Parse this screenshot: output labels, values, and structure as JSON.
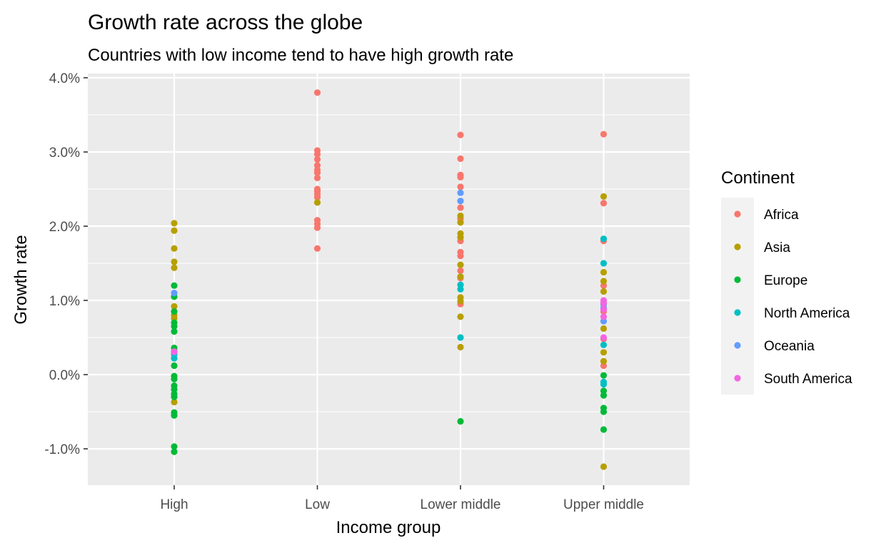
{
  "chart_data": {
    "type": "scatter",
    "title": "Growth rate across the globe",
    "subtitle": "Countries with low income tend to have high growth rate",
    "xlabel": "Income group",
    "ylabel": "Growth rate",
    "categories": [
      "High",
      "Low",
      "Lower middle",
      "Upper middle"
    ],
    "y_ticks": [
      -1.0,
      0.0,
      1.0,
      2.0,
      3.0,
      4.0
    ],
    "y_tick_labels": [
      "-1.0%",
      "0.0%",
      "1.0%",
      "2.0%",
      "3.0%",
      "4.0%"
    ],
    "ylim": [
      -1.5,
      4.1
    ],
    "grid": true,
    "legend": {
      "title": "Continent",
      "position": "right",
      "entries": [
        {
          "name": "Africa",
          "color": "#F8766D"
        },
        {
          "name": "Asia",
          "color": "#B79F00"
        },
        {
          "name": "Europe",
          "color": "#00BA38"
        },
        {
          "name": "North America",
          "color": "#00BFC4"
        },
        {
          "name": "Oceania",
          "color": "#619CFF"
        },
        {
          "name": "South America",
          "color": "#F564E3"
        }
      ]
    },
    "series": [
      {
        "name": "Africa",
        "points": [
          [
            "Low",
            3.8
          ],
          [
            "Low",
            3.02
          ],
          [
            "Low",
            2.97
          ],
          [
            "Low",
            2.9
          ],
          [
            "Low",
            2.82
          ],
          [
            "Low",
            2.76
          ],
          [
            "Low",
            2.72
          ],
          [
            "Low",
            2.65
          ],
          [
            "Low",
            2.5
          ],
          [
            "Low",
            2.47
          ],
          [
            "Low",
            2.43
          ],
          [
            "Low",
            2.39
          ],
          [
            "Low",
            2.08
          ],
          [
            "Low",
            2.03
          ],
          [
            "Low",
            1.98
          ],
          [
            "Low",
            1.7
          ],
          [
            "Lower middle",
            3.23
          ],
          [
            "Lower middle",
            2.91
          ],
          [
            "Lower middle",
            2.69
          ],
          [
            "Lower middle",
            2.66
          ],
          [
            "Lower middle",
            2.53
          ],
          [
            "Lower middle",
            2.25
          ],
          [
            "Lower middle",
            2.1
          ],
          [
            "Lower middle",
            1.8
          ],
          [
            "Lower middle",
            1.65
          ],
          [
            "Lower middle",
            1.6
          ],
          [
            "Lower middle",
            1.4
          ],
          [
            "Lower middle",
            1.3
          ],
          [
            "Lower middle",
            0.95
          ],
          [
            "Upper middle",
            3.24
          ],
          [
            "Upper middle",
            2.31
          ],
          [
            "Upper middle",
            1.8
          ],
          [
            "Upper middle",
            1.2
          ],
          [
            "Upper middle",
            0.85
          ],
          [
            "Upper middle",
            0.48
          ],
          [
            "Upper middle",
            0.12
          ]
        ]
      },
      {
        "name": "Asia",
        "points": [
          [
            "High",
            2.04
          ],
          [
            "High",
            1.94
          ],
          [
            "High",
            1.7
          ],
          [
            "High",
            1.52
          ],
          [
            "High",
            1.44
          ],
          [
            "High",
            0.92
          ],
          [
            "High",
            0.8
          ],
          [
            "High",
            0.76
          ],
          [
            "High",
            -0.37
          ],
          [
            "Low",
            2.32
          ],
          [
            "Lower middle",
            2.14
          ],
          [
            "Lower middle",
            2.05
          ],
          [
            "Lower middle",
            1.9
          ],
          [
            "Lower middle",
            1.85
          ],
          [
            "Lower middle",
            1.48
          ],
          [
            "Lower middle",
            1.32
          ],
          [
            "Lower middle",
            1.04
          ],
          [
            "Lower middle",
            0.99
          ],
          [
            "Lower middle",
            0.78
          ],
          [
            "Lower middle",
            0.37
          ],
          [
            "Upper middle",
            2.4
          ],
          [
            "Upper middle",
            1.38
          ],
          [
            "Upper middle",
            1.26
          ],
          [
            "Upper middle",
            1.12
          ],
          [
            "Upper middle",
            0.62
          ],
          [
            "Upper middle",
            0.3
          ],
          [
            "Upper middle",
            0.18
          ],
          [
            "Upper middle",
            -1.24
          ]
        ]
      },
      {
        "name": "Europe",
        "points": [
          [
            "High",
            1.2
          ],
          [
            "High",
            1.05
          ],
          [
            "High",
            0.85
          ],
          [
            "High",
            0.7
          ],
          [
            "High",
            0.65
          ],
          [
            "High",
            0.58
          ],
          [
            "High",
            0.36
          ],
          [
            "High",
            0.31
          ],
          [
            "High",
            0.12
          ],
          [
            "High",
            -0.02
          ],
          [
            "High",
            -0.06
          ],
          [
            "High",
            -0.15
          ],
          [
            "High",
            -0.2
          ],
          [
            "High",
            -0.26
          ],
          [
            "High",
            -0.3
          ],
          [
            "High",
            -0.51
          ],
          [
            "High",
            -0.55
          ],
          [
            "High",
            -0.97
          ],
          [
            "High",
            -1.04
          ],
          [
            "Lower middle",
            -0.63
          ],
          [
            "Upper middle",
            -0.01
          ],
          [
            "Upper middle",
            -0.22
          ],
          [
            "Upper middle",
            -0.28
          ],
          [
            "Upper middle",
            -0.45
          ],
          [
            "Upper middle",
            -0.5
          ],
          [
            "Upper middle",
            -0.74
          ]
        ]
      },
      {
        "name": "North America",
        "points": [
          [
            "High",
            0.27
          ],
          [
            "High",
            0.22
          ],
          [
            "Lower middle",
            1.21
          ],
          [
            "Lower middle",
            1.15
          ],
          [
            "Lower middle",
            0.5
          ],
          [
            "Upper middle",
            1.83
          ],
          [
            "Upper middle",
            1.5
          ],
          [
            "Upper middle",
            0.95
          ],
          [
            "Upper middle",
            0.4
          ],
          [
            "Upper middle",
            -0.1
          ],
          [
            "Upper middle",
            -0.13
          ]
        ]
      },
      {
        "name": "Oceania",
        "points": [
          [
            "High",
            1.1
          ],
          [
            "High",
            0.3
          ],
          [
            "Lower middle",
            2.45
          ],
          [
            "Lower middle",
            2.34
          ],
          [
            "Upper middle",
            0.9
          ],
          [
            "Upper middle",
            0.72
          ]
        ]
      },
      {
        "name": "South America",
        "points": [
          [
            "High",
            0.31
          ],
          [
            "Upper middle",
            1.0
          ],
          [
            "Upper middle",
            0.96
          ],
          [
            "Upper middle",
            0.88
          ],
          [
            "Upper middle",
            0.78
          ],
          [
            "Upper middle",
            0.5
          ]
        ]
      }
    ]
  }
}
